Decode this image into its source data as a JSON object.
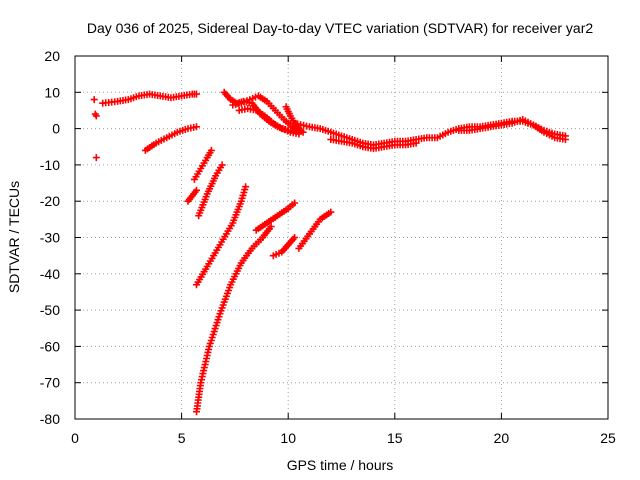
{
  "chart_data": {
    "type": "scatter",
    "title": "Day 036 of 2025, Sidereal Day-to-day VTEC variation (SDTVAR) for receiver yar2",
    "xlabel": "GPS time / hours",
    "ylabel": "SDTVAR / TECUs",
    "xlim": [
      0,
      25
    ],
    "ylim": [
      -80,
      20
    ],
    "xticks": [
      0,
      5,
      10,
      15,
      20,
      25
    ],
    "yticks": [
      -80,
      -70,
      -60,
      -50,
      -40,
      -30,
      -20,
      -10,
      0,
      10,
      20
    ],
    "grid": true,
    "marker": "+",
    "series_color": "#ff0000",
    "series": [
      {
        "name": "s1",
        "x": [
          0.9,
          0.95,
          1.0
        ],
        "y": [
          8,
          4,
          3.5
        ]
      },
      {
        "name": "s2",
        "x": [
          1.0
        ],
        "y": [
          -8
        ]
      },
      {
        "name": "s3",
        "x": [
          1.3,
          2.0,
          2.5,
          3.0,
          3.5,
          4.0,
          4.5,
          5.0,
          5.5,
          5.7
        ],
        "y": [
          7,
          7.5,
          8,
          9,
          9.5,
          9,
          8.5,
          9,
          9.5,
          9.5
        ]
      },
      {
        "name": "s4",
        "x": [
          3.3,
          3.8,
          4.3,
          4.8,
          5.3,
          5.7
        ],
        "y": [
          -6,
          -4,
          -2.5,
          -1,
          0,
          0.5
        ]
      },
      {
        "name": "s5",
        "x": [
          5.3,
          5.5,
          5.7
        ],
        "y": [
          -20,
          -18.5,
          -17
        ]
      },
      {
        "name": "s6",
        "x": [
          5.6,
          5.9,
          6.2,
          6.4
        ],
        "y": [
          -14,
          -11,
          -8,
          -6
        ]
      },
      {
        "name": "s7",
        "x": [
          5.8,
          6.2,
          6.6,
          6.9
        ],
        "y": [
          -24,
          -18,
          -13,
          -10
        ]
      },
      {
        "name": "s8",
        "x": [
          5.7,
          6.2,
          6.8,
          7.4,
          7.8,
          8.0
        ],
        "y": [
          -43,
          -38,
          -32,
          -26,
          -20,
          -16
        ]
      },
      {
        "name": "s9",
        "x": [
          5.7,
          5.9,
          6.3,
          6.8,
          7.3,
          7.8,
          8.3,
          8.8,
          9.2
        ],
        "y": [
          -78,
          -70,
          -60,
          -51,
          -43,
          -37,
          -33,
          -30,
          -27
        ]
      },
      {
        "name": "s10",
        "x": [
          9.3,
          9.7,
          10.0,
          10.3
        ],
        "y": [
          -35,
          -34,
          -32,
          -30
        ]
      },
      {
        "name": "s11",
        "x": [
          8.5,
          9.0,
          9.5,
          10.0,
          10.3
        ],
        "y": [
          -28,
          -26,
          -24,
          -22,
          -20.5
        ]
      },
      {
        "name": "s12",
        "x": [
          10.5,
          11.0,
          11.5,
          12.0
        ],
        "y": [
          -33,
          -29,
          -25,
          -23
        ]
      },
      {
        "name": "s13",
        "x": [
          7.0,
          7.3,
          7.6,
          7.9,
          8.3,
          8.7,
          9.1,
          9.5,
          10.0,
          10.5
        ],
        "y": [
          10,
          8,
          7,
          7.5,
          7,
          4,
          2,
          0.5,
          -0.5,
          -1
        ]
      },
      {
        "name": "s14",
        "x": [
          7.4,
          7.8,
          8.2,
          8.6,
          9.0,
          9.4,
          9.8,
          10.2,
          10.5
        ],
        "y": [
          6.5,
          7,
          8,
          9,
          7.5,
          5,
          2.5,
          0.5,
          -0.5
        ]
      },
      {
        "name": "s15",
        "x": [
          7.7,
          8.1,
          8.5,
          8.9,
          9.3,
          9.7,
          10.1,
          10.5
        ],
        "y": [
          5,
          5.5,
          5,
          3.5,
          1.5,
          0,
          -1,
          -1.5
        ]
      },
      {
        "name": "s16",
        "x": [
          9.9,
          10.1,
          10.3,
          10.5,
          10.7
        ],
        "y": [
          6,
          3.5,
          1.5,
          0,
          -1
        ]
      },
      {
        "name": "s17",
        "x": [
          10.3,
          11.0,
          11.5,
          12.0,
          12.5,
          13.0,
          13.5,
          14.0,
          14.5,
          15.0,
          15.5,
          16.0,
          16.5,
          17.0,
          17.5,
          18.0,
          18.5,
          19.0,
          19.5,
          20.0,
          20.5,
          21.0,
          21.5,
          22.0,
          22.5,
          23.0
        ],
        "y": [
          1.5,
          0.5,
          0,
          -1,
          -2,
          -3,
          -4,
          -4.5,
          -4,
          -3.5,
          -3.5,
          -3,
          -2.5,
          -2.5,
          -1,
          0,
          0.5,
          0.5,
          1,
          1.5,
          2,
          2,
          1,
          -0.5,
          -1.5,
          -2
        ]
      },
      {
        "name": "s18",
        "x": [
          12.0,
          12.5,
          13.0,
          13.5,
          14.0,
          14.5,
          15.0,
          15.5,
          16.0
        ],
        "y": [
          -3,
          -3.5,
          -4,
          -5,
          -5.5,
          -5,
          -4.5,
          -4.5,
          -4
        ]
      },
      {
        "name": "s19",
        "x": [
          18.0,
          18.5,
          19.0,
          19.5,
          20.0,
          20.5,
          21.0,
          21.5,
          22.0,
          22.5,
          23.0
        ],
        "y": [
          -0.5,
          -0.5,
          0,
          0.5,
          1,
          1.5,
          2.5,
          1,
          -1,
          -2.5,
          -3
        ]
      }
    ]
  }
}
